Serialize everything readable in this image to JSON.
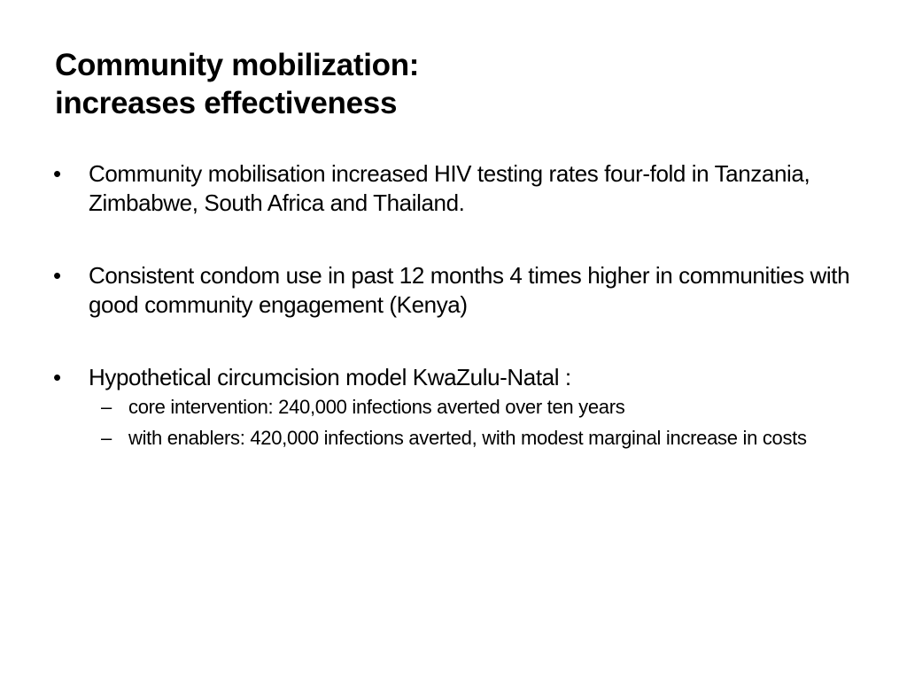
{
  "slide": {
    "title_line1": "Community mobilization:",
    "title_line2": "increases effectiveness",
    "bullet_glyph": "•",
    "dash_glyph": "–",
    "bullets": [
      {
        "text": "Community mobilisation increased HIV testing rates four-fold in Tanzania, Zimbabwe, South Africa and Thailand."
      },
      {
        "text": "Consistent condom use in past 12 months 4 times higher in communities with good community engagement (Kenya)"
      },
      {
        "text": "Hypothetical circumcision model KwaZulu-Natal :",
        "subitems": [
          "core intervention:  240,000 infections averted over ten years",
          "with enablers: 420,000 infections averted, with modest marginal increase in costs"
        ]
      }
    ]
  }
}
